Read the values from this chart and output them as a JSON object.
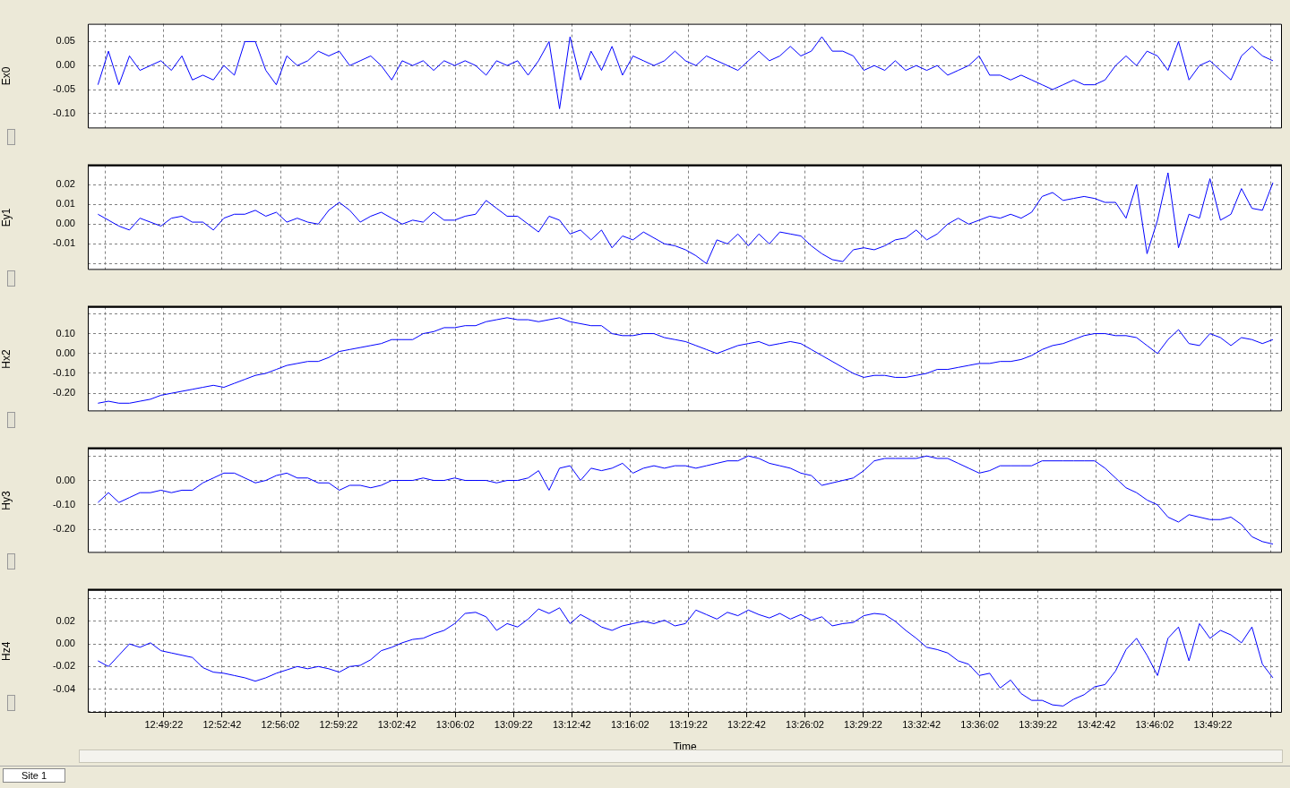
{
  "chart_data": [
    {
      "type": "line",
      "ylabel": "Ex0",
      "color": "#0000ff",
      "grid": true,
      "legend": false,
      "marker": "none",
      "line_style": "solid",
      "tick_labels": "y",
      "xlim": [
        12.7503,
        13.8886
      ],
      "xticks": [
        {
          "value": 12.7672,
          "label": null
        },
        {
          "value": 12.8228,
          "label": null
        },
        {
          "value": 12.8783,
          "label": null
        },
        {
          "value": 12.9339,
          "label": null
        },
        {
          "value": 12.9894,
          "label": null
        },
        {
          "value": 13.045,
          "label": null
        },
        {
          "value": 13.1006,
          "label": null
        },
        {
          "value": 13.1561,
          "label": null
        },
        {
          "value": 13.2117,
          "label": null
        },
        {
          "value": 13.2672,
          "label": null
        },
        {
          "value": 13.3228,
          "label": null
        },
        {
          "value": 13.3783,
          "label": null
        },
        {
          "value": 13.4339,
          "label": null
        },
        {
          "value": 13.4894,
          "label": null
        },
        {
          "value": 13.545,
          "label": null
        },
        {
          "value": 13.6006,
          "label": null
        },
        {
          "value": 13.6561,
          "label": null
        },
        {
          "value": 13.7117,
          "label": null
        },
        {
          "value": 13.7672,
          "label": null
        },
        {
          "value": 13.8228,
          "label": null
        },
        {
          "value": 13.8783,
          "label": null
        }
      ],
      "ylim": [
        -0.131,
        0.087
      ],
      "yticks": [
        {
          "value": -0.1,
          "label": "-0.10"
        },
        {
          "value": -0.05,
          "label": "-0.05"
        },
        {
          "value": 0,
          "label": "0.00"
        },
        {
          "value": 0.05,
          "label": "0.05"
        }
      ],
      "x": [
        12.76,
        12.77,
        12.78,
        12.79,
        12.8,
        12.81,
        12.82,
        12.83,
        12.84,
        12.85,
        12.86,
        12.87,
        12.88,
        12.89,
        12.9,
        12.91,
        12.92,
        12.93,
        12.94,
        12.95,
        12.96,
        12.97,
        12.98,
        12.99,
        13,
        13.01,
        13.02,
        13.03,
        13.04,
        13.05,
        13.06,
        13.07,
        13.08,
        13.09,
        13.1,
        13.11,
        13.12,
        13.13,
        13.14,
        13.15,
        13.16,
        13.17,
        13.18,
        13.19,
        13.2,
        13.21,
        13.22,
        13.23,
        13.24,
        13.25,
        13.26,
        13.27,
        13.28,
        13.29,
        13.3,
        13.31,
        13.32,
        13.33,
        13.34,
        13.35,
        13.36,
        13.37,
        13.38,
        13.39,
        13.4,
        13.41,
        13.42,
        13.43,
        13.44,
        13.45,
        13.46,
        13.47,
        13.48,
        13.49,
        13.5,
        13.51,
        13.52,
        13.53,
        13.54,
        13.55,
        13.56,
        13.57,
        13.58,
        13.59,
        13.6,
        13.61,
        13.62,
        13.63,
        13.64,
        13.65,
        13.66,
        13.67,
        13.68,
        13.69,
        13.7,
        13.71,
        13.72,
        13.73,
        13.74,
        13.75,
        13.76,
        13.77,
        13.78,
        13.79,
        13.8,
        13.81,
        13.82,
        13.83,
        13.84,
        13.85,
        13.86,
        13.87,
        13.88
      ],
      "values": [
        -0.04,
        0.03,
        -0.04,
        0.02,
        -0.01,
        0.0,
        0.01,
        -0.01,
        0.02,
        -0.03,
        -0.02,
        -0.03,
        0.0,
        -0.02,
        0.05,
        0.05,
        -0.01,
        -0.04,
        0.02,
        0.0,
        0.01,
        0.03,
        0.02,
        0.03,
        0.0,
        0.01,
        0.02,
        0.0,
        -0.03,
        0.01,
        0.0,
        0.01,
        -0.01,
        0.01,
        0.0,
        0.01,
        0.0,
        -0.02,
        0.01,
        0.0,
        0.01,
        -0.02,
        0.01,
        0.05,
        -0.09,
        0.06,
        -0.03,
        0.03,
        -0.01,
        0.04,
        -0.02,
        0.02,
        0.01,
        0.0,
        0.01,
        0.03,
        0.01,
        0.0,
        0.02,
        0.01,
        0.0,
        -0.01,
        0.01,
        0.03,
        0.01,
        0.02,
        0.04,
        0.02,
        0.03,
        0.06,
        0.03,
        0.03,
        0.02,
        -0.01,
        0.0,
        -0.01,
        0.01,
        -0.01,
        0.0,
        -0.01,
        0.0,
        -0.02,
        -0.01,
        0.0,
        0.02,
        -0.02,
        -0.02,
        -0.03,
        -0.02,
        -0.03,
        -0.04,
        -0.05,
        -0.04,
        -0.03,
        -0.04,
        -0.04,
        -0.03,
        0.0,
        0.02,
        0.0,
        0.03,
        0.02,
        -0.01,
        0.05,
        -0.03,
        0.0,
        0.01,
        -0.01,
        -0.03,
        0.02,
        0.04,
        0.02,
        0.01
      ]
    },
    {
      "type": "line",
      "ylabel": "Ey1",
      "color": "#0000ff",
      "grid": true,
      "legend": false,
      "marker": "none",
      "line_style": "solid",
      "tick_labels": "y",
      "xlim": [
        12.7503,
        13.8886
      ],
      "xticks": [
        {
          "value": 12.7672,
          "label": null
        },
        {
          "value": 12.8228,
          "label": null
        },
        {
          "value": 12.8783,
          "label": null
        },
        {
          "value": 12.9339,
          "label": null
        },
        {
          "value": 12.9894,
          "label": null
        },
        {
          "value": 13.045,
          "label": null
        },
        {
          "value": 13.1006,
          "label": null
        },
        {
          "value": 13.1561,
          "label": null
        },
        {
          "value": 13.2117,
          "label": null
        },
        {
          "value": 13.2672,
          "label": null
        },
        {
          "value": 13.3228,
          "label": null
        },
        {
          "value": 13.3783,
          "label": null
        },
        {
          "value": 13.4339,
          "label": null
        },
        {
          "value": 13.4894,
          "label": null
        },
        {
          "value": 13.545,
          "label": null
        },
        {
          "value": 13.6006,
          "label": null
        },
        {
          "value": 13.6561,
          "label": null
        },
        {
          "value": 13.7117,
          "label": null
        },
        {
          "value": 13.7672,
          "label": null
        },
        {
          "value": 13.8228,
          "label": null
        },
        {
          "value": 13.8783,
          "label": null
        }
      ],
      "ylim": [
        -0.0232,
        0.0298
      ],
      "yticks": [
        {
          "value": -0.02,
          "label": null
        },
        {
          "value": -0.01,
          "label": "-0.01"
        },
        {
          "value": 0,
          "label": "0.00"
        },
        {
          "value": 0.01,
          "label": "0.01"
        },
        {
          "value": 0.02,
          "label": "0.02"
        }
      ],
      "x": [
        12.76,
        12.77,
        12.78,
        12.79,
        12.8,
        12.81,
        12.82,
        12.83,
        12.84,
        12.85,
        12.86,
        12.87,
        12.88,
        12.89,
        12.9,
        12.91,
        12.92,
        12.93,
        12.94,
        12.95,
        12.96,
        12.97,
        12.98,
        12.99,
        13,
        13.01,
        13.02,
        13.03,
        13.04,
        13.05,
        13.06,
        13.07,
        13.08,
        13.09,
        13.1,
        13.11,
        13.12,
        13.13,
        13.14,
        13.15,
        13.16,
        13.17,
        13.18,
        13.19,
        13.2,
        13.21,
        13.22,
        13.23,
        13.24,
        13.25,
        13.26,
        13.27,
        13.28,
        13.29,
        13.3,
        13.31,
        13.32,
        13.33,
        13.34,
        13.35,
        13.36,
        13.37,
        13.38,
        13.39,
        13.4,
        13.41,
        13.42,
        13.43,
        13.44,
        13.45,
        13.46,
        13.47,
        13.48,
        13.49,
        13.5,
        13.51,
        13.52,
        13.53,
        13.54,
        13.55,
        13.56,
        13.57,
        13.58,
        13.59,
        13.6,
        13.61,
        13.62,
        13.63,
        13.64,
        13.65,
        13.66,
        13.67,
        13.68,
        13.69,
        13.7,
        13.71,
        13.72,
        13.73,
        13.74,
        13.75,
        13.76,
        13.77,
        13.78,
        13.79,
        13.8,
        13.81,
        13.82,
        13.83,
        13.84,
        13.85,
        13.86,
        13.87,
        13.88
      ],
      "values": [
        0.005,
        0.002,
        -0.001,
        -0.003,
        0.003,
        0.001,
        -0.001,
        0.003,
        0.004,
        0.001,
        0.001,
        -0.003,
        0.003,
        0.005,
        0.005,
        0.007,
        0.004,
        0.006,
        0.001,
        0.003,
        0.001,
        0.0,
        0.007,
        0.011,
        0.007,
        0.001,
        0.004,
        0.006,
        0.003,
        0.0,
        0.002,
        0.001,
        0.006,
        0.002,
        0.002,
        0.004,
        0.005,
        0.012,
        0.008,
        0.004,
        0.004,
        0.0,
        -0.004,
        0.004,
        0.002,
        -0.005,
        -0.003,
        -0.008,
        -0.003,
        -0.012,
        -0.006,
        -0.008,
        -0.004,
        -0.007,
        -0.01,
        -0.011,
        -0.013,
        -0.016,
        -0.02,
        -0.008,
        -0.01,
        -0.005,
        -0.011,
        -0.005,
        -0.01,
        -0.004,
        -0.005,
        -0.006,
        -0.011,
        -0.015,
        -0.018,
        -0.019,
        -0.013,
        -0.012,
        -0.013,
        -0.011,
        -0.008,
        -0.007,
        -0.003,
        -0.008,
        -0.005,
        0.0,
        0.003,
        0.0,
        0.002,
        0.004,
        0.003,
        0.005,
        0.003,
        0.006,
        0.014,
        0.016,
        0.012,
        0.013,
        0.014,
        0.013,
        0.011,
        0.011,
        0.003,
        0.02,
        -0.015,
        0.002,
        0.026,
        -0.012,
        0.005,
        0.003,
        0.023,
        0.002,
        0.005,
        0.018,
        0.008,
        0.007,
        0.021
      ]
    },
    {
      "type": "line",
      "ylabel": "Hx2",
      "color": "#0000ff",
      "grid": true,
      "legend": false,
      "marker": "none",
      "line_style": "solid",
      "tick_labels": "y",
      "xlim": [
        12.7503,
        13.8886
      ],
      "xticks": [
        {
          "value": 12.7672,
          "label": null
        },
        {
          "value": 12.8228,
          "label": null
        },
        {
          "value": 12.8783,
          "label": null
        },
        {
          "value": 12.9339,
          "label": null
        },
        {
          "value": 12.9894,
          "label": null
        },
        {
          "value": 13.045,
          "label": null
        },
        {
          "value": 13.1006,
          "label": null
        },
        {
          "value": 13.1561,
          "label": null
        },
        {
          "value": 13.2117,
          "label": null
        },
        {
          "value": 13.2672,
          "label": null
        },
        {
          "value": 13.3228,
          "label": null
        },
        {
          "value": 13.3783,
          "label": null
        },
        {
          "value": 13.4339,
          "label": null
        },
        {
          "value": 13.4894,
          "label": null
        },
        {
          "value": 13.545,
          "label": null
        },
        {
          "value": 13.6006,
          "label": null
        },
        {
          "value": 13.6561,
          "label": null
        },
        {
          "value": 13.7117,
          "label": null
        },
        {
          "value": 13.7672,
          "label": null
        },
        {
          "value": 13.8228,
          "label": null
        },
        {
          "value": 13.8783,
          "label": null
        }
      ],
      "ylim": [
        -0.291,
        0.235
      ],
      "yticks": [
        {
          "value": -0.2,
          "label": "-0.20"
        },
        {
          "value": -0.1,
          "label": "-0.10"
        },
        {
          "value": 0,
          "label": "0.00"
        },
        {
          "value": 0.1,
          "label": "0.10"
        },
        {
          "value": 0.2,
          "label": null
        }
      ],
      "x": [
        12.76,
        12.77,
        12.78,
        12.79,
        12.8,
        12.81,
        12.82,
        12.83,
        12.84,
        12.85,
        12.86,
        12.87,
        12.88,
        12.89,
        12.9,
        12.91,
        12.92,
        12.93,
        12.94,
        12.95,
        12.96,
        12.97,
        12.98,
        12.99,
        13,
        13.01,
        13.02,
        13.03,
        13.04,
        13.05,
        13.06,
        13.07,
        13.08,
        13.09,
        13.1,
        13.11,
        13.12,
        13.13,
        13.14,
        13.15,
        13.16,
        13.17,
        13.18,
        13.19,
        13.2,
        13.21,
        13.22,
        13.23,
        13.24,
        13.25,
        13.26,
        13.27,
        13.28,
        13.29,
        13.3,
        13.31,
        13.32,
        13.33,
        13.34,
        13.35,
        13.36,
        13.37,
        13.38,
        13.39,
        13.4,
        13.41,
        13.42,
        13.43,
        13.44,
        13.45,
        13.46,
        13.47,
        13.48,
        13.49,
        13.5,
        13.51,
        13.52,
        13.53,
        13.54,
        13.55,
        13.56,
        13.57,
        13.58,
        13.59,
        13.6,
        13.61,
        13.62,
        13.63,
        13.64,
        13.65,
        13.66,
        13.67,
        13.68,
        13.69,
        13.7,
        13.71,
        13.72,
        13.73,
        13.74,
        13.75,
        13.76,
        13.77,
        13.78,
        13.79,
        13.8,
        13.81,
        13.82,
        13.83,
        13.84,
        13.85,
        13.86,
        13.87,
        13.88
      ],
      "values": [
        -0.25,
        -0.24,
        -0.25,
        -0.25,
        -0.24,
        -0.23,
        -0.21,
        -0.2,
        -0.19,
        -0.18,
        -0.17,
        -0.16,
        -0.17,
        -0.15,
        -0.13,
        -0.11,
        -0.1,
        -0.08,
        -0.06,
        -0.05,
        -0.04,
        -0.04,
        -0.02,
        0.01,
        0.02,
        0.03,
        0.04,
        0.05,
        0.07,
        0.07,
        0.07,
        0.1,
        0.11,
        0.13,
        0.13,
        0.14,
        0.14,
        0.16,
        0.17,
        0.18,
        0.17,
        0.17,
        0.16,
        0.17,
        0.18,
        0.16,
        0.15,
        0.14,
        0.14,
        0.1,
        0.09,
        0.09,
        0.1,
        0.1,
        0.08,
        0.07,
        0.06,
        0.04,
        0.02,
        0.0,
        0.02,
        0.04,
        0.05,
        0.06,
        0.04,
        0.05,
        0.06,
        0.05,
        0.02,
        -0.01,
        -0.04,
        -0.07,
        -0.1,
        -0.12,
        -0.11,
        -0.11,
        -0.12,
        -0.12,
        -0.11,
        -0.1,
        -0.08,
        -0.08,
        -0.07,
        -0.06,
        -0.05,
        -0.05,
        -0.04,
        -0.04,
        -0.03,
        -0.01,
        0.02,
        0.04,
        0.05,
        0.07,
        0.09,
        0.1,
        0.1,
        0.09,
        0.09,
        0.08,
        0.04,
        0.0,
        0.07,
        0.12,
        0.05,
        0.04,
        0.1,
        0.08,
        0.04,
        0.08,
        0.07,
        0.05,
        0.07
      ]
    },
    {
      "type": "line",
      "ylabel": "Hy3",
      "color": "#0000ff",
      "grid": true,
      "legend": false,
      "marker": "none",
      "line_style": "solid",
      "tick_labels": "y",
      "xlim": [
        12.7503,
        13.8886
      ],
      "xticks": [
        {
          "value": 12.7672,
          "label": null
        },
        {
          "value": 12.8228,
          "label": null
        },
        {
          "value": 12.8783,
          "label": null
        },
        {
          "value": 12.9339,
          "label": null
        },
        {
          "value": 12.9894,
          "label": null
        },
        {
          "value": 13.045,
          "label": null
        },
        {
          "value": 13.1006,
          "label": null
        },
        {
          "value": 13.1561,
          "label": null
        },
        {
          "value": 13.2117,
          "label": null
        },
        {
          "value": 13.2672,
          "label": null
        },
        {
          "value": 13.3228,
          "label": null
        },
        {
          "value": 13.3783,
          "label": null
        },
        {
          "value": 13.4339,
          "label": null
        },
        {
          "value": 13.4894,
          "label": null
        },
        {
          "value": 13.545,
          "label": null
        },
        {
          "value": 13.6006,
          "label": null
        },
        {
          "value": 13.6561,
          "label": null
        },
        {
          "value": 13.7117,
          "label": null
        },
        {
          "value": 13.7672,
          "label": null
        },
        {
          "value": 13.8228,
          "label": null
        },
        {
          "value": 13.8783,
          "label": null
        }
      ],
      "ylim": [
        -0.296,
        0.1315
      ],
      "yticks": [
        {
          "value": -0.2,
          "label": "-0.20"
        },
        {
          "value": -0.1,
          "label": "-0.10"
        },
        {
          "value": 0,
          "label": "0.00"
        },
        {
          "value": 0.1,
          "label": null
        }
      ],
      "x": [
        12.76,
        12.77,
        12.78,
        12.79,
        12.8,
        12.81,
        12.82,
        12.83,
        12.84,
        12.85,
        12.86,
        12.87,
        12.88,
        12.89,
        12.9,
        12.91,
        12.92,
        12.93,
        12.94,
        12.95,
        12.96,
        12.97,
        12.98,
        12.99,
        13,
        13.01,
        13.02,
        13.03,
        13.04,
        13.05,
        13.06,
        13.07,
        13.08,
        13.09,
        13.1,
        13.11,
        13.12,
        13.13,
        13.14,
        13.15,
        13.16,
        13.17,
        13.18,
        13.19,
        13.2,
        13.21,
        13.22,
        13.23,
        13.24,
        13.25,
        13.26,
        13.27,
        13.28,
        13.29,
        13.3,
        13.31,
        13.32,
        13.33,
        13.34,
        13.35,
        13.36,
        13.37,
        13.38,
        13.39,
        13.4,
        13.41,
        13.42,
        13.43,
        13.44,
        13.45,
        13.46,
        13.47,
        13.48,
        13.49,
        13.5,
        13.51,
        13.52,
        13.53,
        13.54,
        13.55,
        13.56,
        13.57,
        13.58,
        13.59,
        13.6,
        13.61,
        13.62,
        13.63,
        13.64,
        13.65,
        13.66,
        13.67,
        13.68,
        13.69,
        13.7,
        13.71,
        13.72,
        13.73,
        13.74,
        13.75,
        13.76,
        13.77,
        13.78,
        13.79,
        13.8,
        13.81,
        13.82,
        13.83,
        13.84,
        13.85,
        13.86,
        13.87,
        13.88
      ],
      "values": [
        -0.09,
        -0.05,
        -0.09,
        -0.07,
        -0.05,
        -0.05,
        -0.04,
        -0.05,
        -0.04,
        -0.04,
        -0.01,
        0.01,
        0.03,
        0.03,
        0.01,
        -0.01,
        0.0,
        0.02,
        0.03,
        0.01,
        0.01,
        -0.01,
        -0.01,
        -0.04,
        -0.02,
        -0.02,
        -0.03,
        -0.02,
        0.0,
        0.0,
        0.0,
        0.01,
        0.0,
        0.0,
        0.01,
        0.0,
        0.0,
        0.0,
        -0.01,
        0.0,
        0.0,
        0.01,
        0.04,
        -0.04,
        0.05,
        0.06,
        0.0,
        0.05,
        0.04,
        0.05,
        0.07,
        0.03,
        0.05,
        0.06,
        0.05,
        0.06,
        0.06,
        0.05,
        0.06,
        0.07,
        0.08,
        0.08,
        0.1,
        0.09,
        0.07,
        0.06,
        0.05,
        0.03,
        0.02,
        -0.02,
        -0.01,
        0.0,
        0.01,
        0.04,
        0.08,
        0.09,
        0.09,
        0.09,
        0.09,
        0.1,
        0.09,
        0.09,
        0.07,
        0.05,
        0.03,
        0.04,
        0.06,
        0.06,
        0.06,
        0.06,
        0.08,
        0.08,
        0.08,
        0.08,
        0.08,
        0.08,
        0.05,
        0.01,
        -0.03,
        -0.05,
        -0.08,
        -0.1,
        -0.15,
        -0.17,
        -0.14,
        -0.15,
        -0.16,
        -0.16,
        -0.15,
        -0.18,
        -0.23,
        -0.25,
        -0.26
      ]
    },
    {
      "type": "line",
      "ylabel": "Hz4",
      "xlabel": "Time",
      "color": "#0000ff",
      "grid": true,
      "legend": false,
      "marker": "none",
      "line_style": "solid",
      "annotations": [
        "Site 1"
      ],
      "xlim": [
        12.7503,
        13.8886
      ],
      "xticks": [
        {
          "value": 12.7672,
          "label": null
        },
        {
          "value": 12.8228,
          "label": "12:49:22"
        },
        {
          "value": 12.8783,
          "label": "12:52:42"
        },
        {
          "value": 12.9339,
          "label": "12:56:02"
        },
        {
          "value": 12.9894,
          "label": "12:59:22"
        },
        {
          "value": 13.045,
          "label": "13:02:42"
        },
        {
          "value": 13.1006,
          "label": "13:06:02"
        },
        {
          "value": 13.1561,
          "label": "13:09:22"
        },
        {
          "value": 13.2117,
          "label": "13:12:42"
        },
        {
          "value": 13.2672,
          "label": "13:16:02"
        },
        {
          "value": 13.3228,
          "label": "13:19:22"
        },
        {
          "value": 13.3783,
          "label": "13:22:42"
        },
        {
          "value": 13.4339,
          "label": "13:26:02"
        },
        {
          "value": 13.4894,
          "label": "13:29:22"
        },
        {
          "value": 13.545,
          "label": "13:32:42"
        },
        {
          "value": 13.6006,
          "label": "13:36:02"
        },
        {
          "value": 13.6561,
          "label": "13:39:22"
        },
        {
          "value": 13.7117,
          "label": "13:42:42"
        },
        {
          "value": 13.7672,
          "label": "13:46:02"
        },
        {
          "value": 13.8228,
          "label": "13:49:22"
        },
        {
          "value": 13.8783,
          "label": null
        }
      ],
      "ylim": [
        -0.061,
        0.048
      ],
      "yticks": [
        {
          "value": -0.06,
          "label": null
        },
        {
          "value": -0.04,
          "label": "-0.04"
        },
        {
          "value": -0.02,
          "label": "-0.02"
        },
        {
          "value": 0,
          "label": "0.00"
        },
        {
          "value": 0.02,
          "label": "0.02"
        },
        {
          "value": 0.04,
          "label": null
        }
      ],
      "x": [
        12.76,
        12.77,
        12.78,
        12.79,
        12.8,
        12.81,
        12.82,
        12.83,
        12.84,
        12.85,
        12.86,
        12.87,
        12.88,
        12.89,
        12.9,
        12.91,
        12.92,
        12.93,
        12.94,
        12.95,
        12.96,
        12.97,
        12.98,
        12.99,
        13,
        13.01,
        13.02,
        13.03,
        13.04,
        13.05,
        13.06,
        13.07,
        13.08,
        13.09,
        13.1,
        13.11,
        13.12,
        13.13,
        13.14,
        13.15,
        13.16,
        13.17,
        13.18,
        13.19,
        13.2,
        13.21,
        13.22,
        13.23,
        13.24,
        13.25,
        13.26,
        13.27,
        13.28,
        13.29,
        13.3,
        13.31,
        13.32,
        13.33,
        13.34,
        13.35,
        13.36,
        13.37,
        13.38,
        13.39,
        13.4,
        13.41,
        13.42,
        13.43,
        13.44,
        13.45,
        13.46,
        13.47,
        13.48,
        13.49,
        13.5,
        13.51,
        13.52,
        13.53,
        13.54,
        13.55,
        13.56,
        13.57,
        13.58,
        13.59,
        13.6,
        13.61,
        13.62,
        13.63,
        13.64,
        13.65,
        13.66,
        13.67,
        13.68,
        13.69,
        13.7,
        13.71,
        13.72,
        13.73,
        13.74,
        13.75,
        13.76,
        13.77,
        13.78,
        13.79,
        13.8,
        13.81,
        13.82,
        13.83,
        13.84,
        13.85,
        13.86,
        13.87,
        13.88
      ],
      "values": [
        -0.015,
        -0.02,
        -0.01,
        0.0,
        -0.003,
        0.001,
        -0.006,
        -0.008,
        -0.01,
        -0.012,
        -0.021,
        -0.025,
        -0.026,
        -0.028,
        -0.03,
        -0.033,
        -0.03,
        -0.026,
        -0.023,
        -0.02,
        -0.022,
        -0.02,
        -0.022,
        -0.025,
        -0.02,
        -0.019,
        -0.014,
        -0.006,
        -0.003,
        0.001,
        0.004,
        0.005,
        0.009,
        0.012,
        0.018,
        0.027,
        0.028,
        0.024,
        0.012,
        0.018,
        0.015,
        0.022,
        0.031,
        0.027,
        0.032,
        0.018,
        0.026,
        0.021,
        0.015,
        0.012,
        0.016,
        0.018,
        0.02,
        0.018,
        0.021,
        0.016,
        0.018,
        0.03,
        0.026,
        0.022,
        0.028,
        0.025,
        0.03,
        0.026,
        0.023,
        0.027,
        0.022,
        0.026,
        0.021,
        0.024,
        0.016,
        0.018,
        0.019,
        0.025,
        0.027,
        0.026,
        0.02,
        0.012,
        0.005,
        -0.003,
        -0.005,
        -0.008,
        -0.015,
        -0.018,
        -0.028,
        -0.026,
        -0.039,
        -0.032,
        -0.044,
        -0.05,
        -0.05,
        -0.054,
        -0.055,
        -0.049,
        -0.045,
        -0.038,
        -0.036,
        -0.024,
        -0.005,
        0.005,
        -0.01,
        -0.028,
        0.005,
        0.015,
        -0.015,
        0.018,
        0.005,
        0.012,
        0.008,
        0.001,
        0.015,
        -0.018,
        -0.03
      ]
    }
  ]
}
